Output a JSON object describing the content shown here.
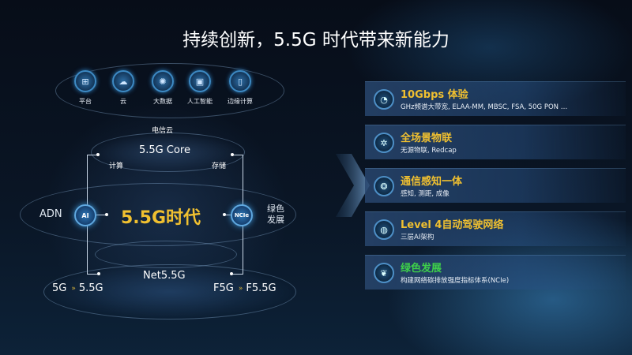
{
  "title": "持续创新，5.5G 时代带来新能力",
  "top_icons": [
    {
      "label": "平台",
      "icon": "platform-icon",
      "glyph": "⊞"
    },
    {
      "label": "云",
      "icon": "cloud-icon",
      "glyph": "☁"
    },
    {
      "label": "大数据",
      "icon": "big-data-icon",
      "glyph": "✺"
    },
    {
      "label": "人工智能",
      "icon": "ai-chip-icon",
      "glyph": "▣"
    },
    {
      "label": "边缘计算",
      "icon": "edge-computing-icon",
      "glyph": "▯"
    }
  ],
  "diagram": {
    "telecom_cloud": "电信云",
    "core": "5.5G Core",
    "compute": "计算",
    "storage": "存储",
    "adn": "ADN",
    "ai_badge": "AI",
    "era": "5.5G时代",
    "ncie_badge": "NCIe",
    "green_line1": "绿色",
    "green_line2": "发展",
    "net": "Net5.5G",
    "left_from": "5G",
    "left_to": "5.5G",
    "right_from": "F5G",
    "right_to": "F5.5G",
    "arrow_glyph": "»"
  },
  "features": [
    {
      "title": "10Gbps 体验",
      "subtitle": "GHz频谱大带宽, ELAA-MM, MBSC, FSA, 50G PON …",
      "icon": "speed-gauge-icon",
      "glyph": "◔",
      "color": "#f0c030"
    },
    {
      "title": "全场景物联",
      "subtitle": "无源物联, Redcap",
      "icon": "iot-network-icon",
      "glyph": "✲",
      "color": "#f0c030"
    },
    {
      "title": "通信感知一体",
      "subtitle": "感知, 测距, 成像",
      "icon": "sensing-icon",
      "glyph": "❂",
      "color": "#f0c030"
    },
    {
      "title": "Level 4自动驾驶网络",
      "subtitle": "三层AI架构",
      "icon": "globe-network-icon",
      "glyph": "◍",
      "color": "#f0c030"
    },
    {
      "title": "绿色发展",
      "subtitle": "构建网络碳排放强度指标体系(NCIe)",
      "icon": "leaf-icon",
      "glyph": "❦",
      "color": "#3ecf4a"
    }
  ],
  "colors": {
    "accent_gold": "#f0c030",
    "green": "#3ecf4a",
    "background": "#070d18"
  }
}
